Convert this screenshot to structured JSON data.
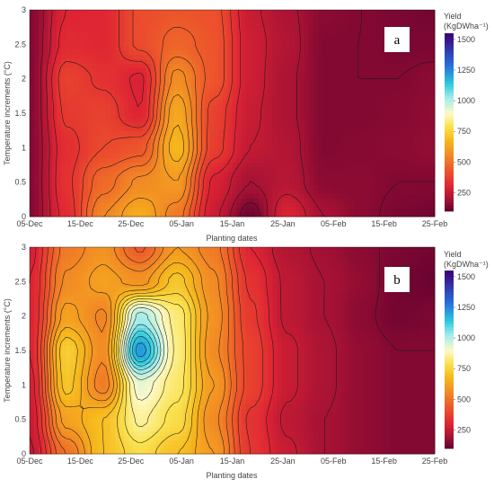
{
  "chart_data": [
    {
      "type": "contour",
      "panel_label": "a",
      "xlabel": "Planting dates",
      "ylabel": "Temperature increments (°C)",
      "x_ticks": [
        "05-Dec",
        "15-Dec",
        "25-Dec",
        "05-Jan",
        "15-Jan",
        "25-Jan",
        "05-Feb",
        "15-Feb",
        "25-Feb"
      ],
      "y_ticks": [
        "0",
        "0.5",
        "1",
        "1.5",
        "2",
        "2.5",
        "3"
      ],
      "ylim": [
        0,
        3
      ],
      "colorbar": {
        "title_line1": "Yield",
        "title_line2": "(KgDWha⁻¹)",
        "ticks": [
          "250",
          "500",
          "750",
          "1000",
          "1250",
          "1500"
        ],
        "range": [
          100,
          1550
        ]
      },
      "contour_step": 50,
      "grid": {
        "y": [
          0,
          0.5,
          1,
          1.5,
          2,
          2.5,
          3
        ],
        "rows": [
          [
            150,
            320,
            550,
            650,
            520,
            260,
            120,
            300,
            200,
            160,
            140,
            130
          ],
          [
            150,
            340,
            480,
            560,
            600,
            290,
            200,
            230,
            160,
            160,
            150,
            150
          ],
          [
            150,
            330,
            400,
            430,
            680,
            370,
            250,
            220,
            150,
            155,
            160,
            170
          ],
          [
            150,
            360,
            380,
            300,
            640,
            380,
            260,
            210,
            150,
            150,
            155,
            165
          ],
          [
            150,
            380,
            340,
            290,
            570,
            430,
            270,
            210,
            150,
            150,
            150,
            160
          ],
          [
            150,
            320,
            310,
            410,
            470,
            430,
            270,
            220,
            150,
            150,
            140,
            140
          ],
          [
            150,
            300,
            310,
            410,
            430,
            420,
            260,
            210,
            160,
            150,
            140,
            130
          ]
        ]
      }
    },
    {
      "type": "contour",
      "panel_label": "b",
      "xlabel": "Planting dates",
      "ylabel": "Temperature increments (°C)",
      "x_ticks": [
        "05-Dec",
        "15-Dec",
        "25-Dec",
        "05-Jan",
        "15-Jan",
        "25-Jan",
        "05-Feb",
        "15-Feb",
        "25-Feb"
      ],
      "y_ticks": [
        "0",
        "0.5",
        "1",
        "1.5",
        "2",
        "2.5",
        "3"
      ],
      "ylim": [
        0,
        3
      ],
      "colorbar": {
        "title_line1": "Yield",
        "title_line2": "(KgDWha⁻¹)",
        "ticks": [
          "250",
          "500",
          "750",
          "1000",
          "1250",
          "1500"
        ],
        "range": [
          100,
          1550
        ]
      },
      "contour_step": 50,
      "grid": {
        "y": [
          0,
          0.5,
          1,
          1.5,
          2,
          2.5,
          3
        ],
        "rows": [
          [
            240,
            500,
            700,
            780,
            700,
            600,
            350,
            260,
            200,
            170,
            150,
            150
          ],
          [
            260,
            620,
            700,
            860,
            780,
            560,
            340,
            240,
            200,
            170,
            150,
            150
          ],
          [
            280,
            720,
            520,
            930,
            820,
            600,
            380,
            260,
            210,
            170,
            150,
            150
          ],
          [
            300,
            740,
            560,
            1230,
            840,
            560,
            380,
            260,
            210,
            170,
            150,
            150
          ],
          [
            300,
            620,
            540,
            1020,
            830,
            580,
            360,
            240,
            200,
            160,
            130,
            140
          ],
          [
            300,
            560,
            620,
            580,
            720,
            560,
            340,
            240,
            200,
            170,
            130,
            120
          ],
          [
            280,
            520,
            580,
            440,
            600,
            520,
            300,
            220,
            190,
            160,
            140,
            130
          ]
        ]
      }
    }
  ]
}
